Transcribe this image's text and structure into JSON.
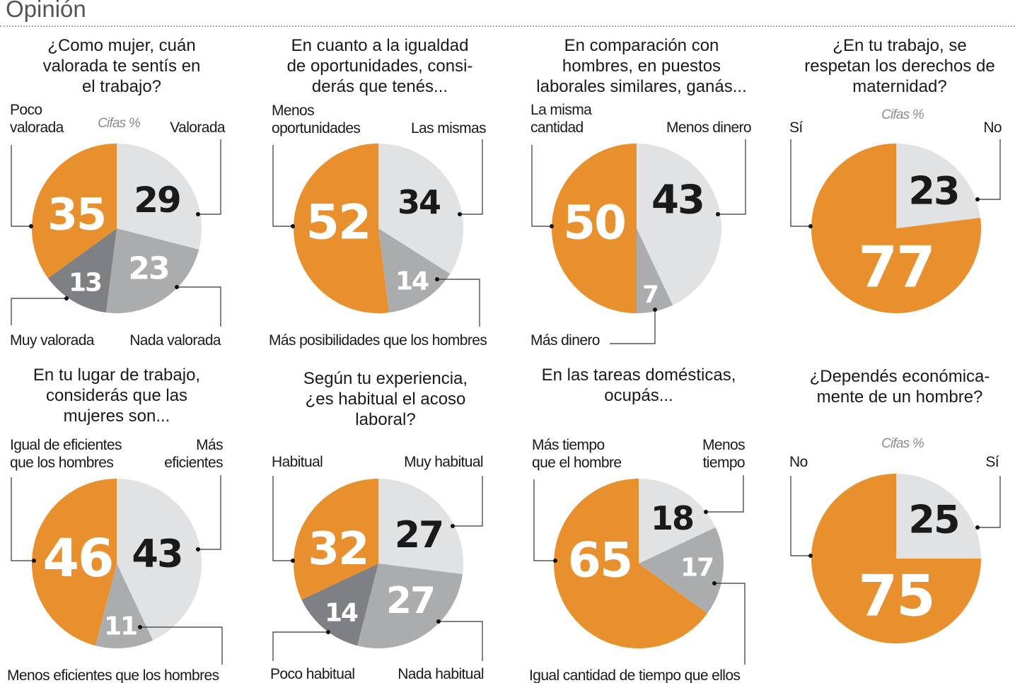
{
  "header": {
    "title": "Opinión"
  },
  "colors": {
    "orange": "#e88f2e",
    "light": "#e1e2e3",
    "mid": "#abacae",
    "dark": "#7f8083",
    "leader": "#333333"
  },
  "chart_data": [
    {
      "type": "pie",
      "title_lines": [
        "¿Como mujer, cuán",
        "valorada te sentís en",
        "el trabajo?"
      ],
      "note": "Cifas %",
      "slices": [
        {
          "label_lines": [
            "Valorada"
          ],
          "value": 29,
          "color": "light"
        },
        {
          "label_lines": [
            "Nada valorada"
          ],
          "value": 23,
          "color": "mid"
        },
        {
          "label_lines": [
            "Muy valorada"
          ],
          "value": 13,
          "color": "dark"
        },
        {
          "label_lines": [
            "Poco",
            "valorada"
          ],
          "value": 35,
          "color": "orange"
        }
      ]
    },
    {
      "type": "pie",
      "title_lines": [
        "En cuanto a la igualdad",
        "de oportunidades, consi-",
        "derás que tenés..."
      ],
      "slices": [
        {
          "label_lines": [
            "Las mismas"
          ],
          "value": 34,
          "color": "light"
        },
        {
          "label_lines": [
            "Más posibilidades que los hombres"
          ],
          "value": 14,
          "color": "mid"
        },
        {
          "label_lines": [
            "Menos",
            "oportunidades"
          ],
          "value": 52,
          "color": "orange"
        }
      ]
    },
    {
      "type": "pie",
      "title_lines": [
        "En comparación con",
        "hombres, en puestos",
        "laborales similares, ganás..."
      ],
      "slices": [
        {
          "label_lines": [
            "Menos dinero"
          ],
          "value": 43,
          "color": "light"
        },
        {
          "label_lines": [
            "Más dinero"
          ],
          "value": 7,
          "color": "mid"
        },
        {
          "label_lines": [
            "La misma",
            "cantidad"
          ],
          "value": 50,
          "color": "orange"
        }
      ]
    },
    {
      "type": "pie",
      "title_lines": [
        "¿En tu trabajo, se",
        "respetan los derechos de",
        "maternidad?"
      ],
      "note": "Cifas %",
      "slices": [
        {
          "label_lines": [
            "No"
          ],
          "value": 23,
          "color": "light"
        },
        {
          "label_lines": [
            "Sí"
          ],
          "value": 77,
          "color": "orange"
        }
      ]
    },
    {
      "type": "pie",
      "title_lines": [
        "En tu lugar de trabajo,",
        "considerás que las",
        "mujeres son..."
      ],
      "slices": [
        {
          "label_lines": [
            "Más",
            "eficientes"
          ],
          "value": 43,
          "color": "light"
        },
        {
          "label_lines": [
            "Menos eficientes que los hombres"
          ],
          "value": 11,
          "color": "mid"
        },
        {
          "label_lines": [
            "Igual de eficientes",
            "que los hombres"
          ],
          "value": 46,
          "color": "orange"
        }
      ]
    },
    {
      "type": "pie",
      "title_lines": [
        "Según tu experiencia,",
        "¿es habitual el acoso",
        "laboral?"
      ],
      "slices": [
        {
          "label_lines": [
            "Muy habitual"
          ],
          "value": 27,
          "color": "light"
        },
        {
          "label_lines": [
            "Nada habitual"
          ],
          "value": 27,
          "color": "mid"
        },
        {
          "label_lines": [
            "Poco habitual"
          ],
          "value": 14,
          "color": "dark"
        },
        {
          "label_lines": [
            "Habitual"
          ],
          "value": 32,
          "color": "orange"
        }
      ]
    },
    {
      "type": "pie",
      "title_lines": [
        "En las tareas domésticas,",
        "ocupás..."
      ],
      "slices": [
        {
          "label_lines": [
            "Menos",
            "tiempo"
          ],
          "value": 18,
          "color": "light"
        },
        {
          "label_lines": [
            "Igual cantidad de tiempo que ellos"
          ],
          "value": 17,
          "color": "mid"
        },
        {
          "label_lines": [
            "Más tiempo",
            "que el hombre"
          ],
          "value": 65,
          "color": "orange"
        }
      ]
    },
    {
      "type": "pie",
      "title_lines": [
        "¿Dependés económica-",
        "mente de un hombre?"
      ],
      "note": "Cifas %",
      "slices": [
        {
          "label_lines": [
            "Sí"
          ],
          "value": 25,
          "color": "light"
        },
        {
          "label_lines": [
            "No"
          ],
          "value": 75,
          "color": "orange"
        }
      ]
    }
  ]
}
